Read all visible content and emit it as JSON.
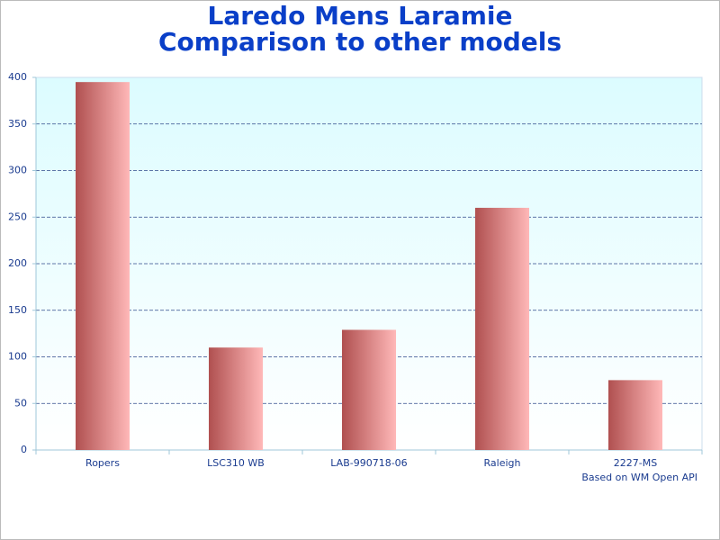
{
  "chart_data": {
    "type": "bar",
    "title": [
      "Laredo Mens Laramie",
      "Comparison to other models"
    ],
    "categories": [
      "Ropers",
      "LSC310 WB",
      "LAB-990718-06",
      "Raleigh",
      "2227-MS"
    ],
    "values": [
      395,
      110,
      129,
      260,
      75
    ],
    "color": [
      "#b05050",
      "#ffb8b8"
    ],
    "ylim": [
      0,
      400
    ],
    "yticks": [
      0,
      50,
      100,
      150,
      200,
      250,
      300,
      350,
      400
    ],
    "grid": true,
    "note": "Based on WM Open API"
  }
}
